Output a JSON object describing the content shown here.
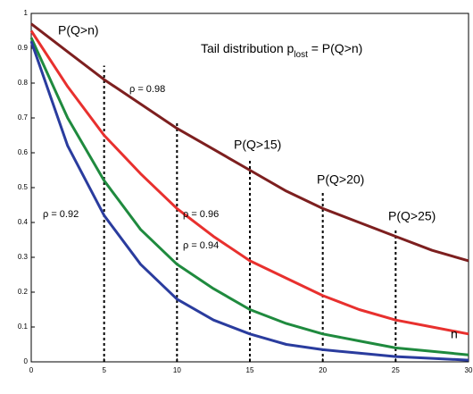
{
  "chart_data": {
    "type": "line",
    "title": [
      "Tail distribution p",
      "lost",
      " = P(Q>n)"
    ],
    "annotations": [
      "P(Q>n)",
      "P(Q>15)",
      "P(Q>20)",
      "P(Q>25)",
      "n"
    ],
    "x": [
      0,
      2.5,
      5,
      7.5,
      10,
      12.5,
      15,
      17.5,
      20,
      22.5,
      25,
      27.5,
      30
    ],
    "series": [
      {
        "name": "ρ = 0.98",
        "color": "#7d1f1f",
        "values": [
          0.97,
          0.89,
          0.81,
          0.74,
          0.67,
          0.61,
          0.55,
          0.49,
          0.44,
          0.4,
          0.36,
          0.32,
          0.29
        ]
      },
      {
        "name": "ρ = 0.96",
        "color": "#e8302e",
        "values": [
          0.95,
          0.79,
          0.65,
          0.54,
          0.44,
          0.36,
          0.29,
          0.24,
          0.19,
          0.15,
          0.12,
          0.1,
          0.08
        ]
      },
      {
        "name": "ρ = 0.94",
        "color": "#1f8a3e",
        "values": [
          0.93,
          0.7,
          0.52,
          0.38,
          0.28,
          0.21,
          0.15,
          0.11,
          0.08,
          0.06,
          0.04,
          0.03,
          0.02
        ]
      },
      {
        "name": "ρ = 0.92",
        "color": "#2a3c9e",
        "values": [
          0.92,
          0.62,
          0.42,
          0.28,
          0.18,
          0.12,
          0.08,
          0.05,
          0.035,
          0.025,
          0.015,
          0.01,
          0.005
        ]
      }
    ],
    "dashed_lines": {
      "x": [
        5,
        10,
        15,
        20,
        25
      ],
      "y": [
        0.85,
        0.69,
        0.58,
        0.49,
        0.38
      ]
    },
    "xlim": [
      0,
      30
    ],
    "xticks": [
      0,
      5,
      10,
      15,
      20,
      25,
      30
    ],
    "ylim": [
      0,
      1
    ],
    "yticks": [
      0,
      0.1,
      0.2,
      0.3,
      0.4,
      0.5,
      0.6,
      0.7,
      0.8,
      0.9,
      1
    ]
  }
}
